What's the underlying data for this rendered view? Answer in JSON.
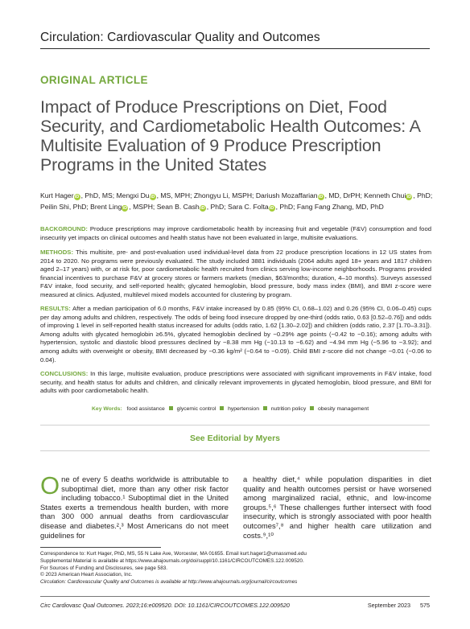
{
  "journal": "Circulation: Cardiovascular Quality and Outcomes",
  "article_type": "ORIGINAL ARTICLE",
  "title": "Impact of Produce Prescriptions on Diet, Food Security, and Cardiometabolic Health Outcomes: A Multisite Evaluation of 9 Produce Prescription Programs in the United States",
  "authors": [
    {
      "name": "Kurt Hager",
      "degrees": ", PhD, MS;",
      "orcid": true
    },
    {
      "name": "Mengxi Du",
      "degrees": ", MS, MPH;",
      "orcid": true
    },
    {
      "name": "Zhongyu Li",
      "degrees": ", MSPH;",
      "orcid": false
    },
    {
      "name": "Dariush Mozaffarian",
      "degrees": ", MD, DrPH;",
      "orcid": true
    },
    {
      "name": "Kenneth Chui",
      "degrees": ", PhD;",
      "orcid": true
    },
    {
      "name": "Peilin Shi",
      "degrees": ", PhD;",
      "orcid": false
    },
    {
      "name": "Brent Ling",
      "degrees": ", MSPH;",
      "orcid": true
    },
    {
      "name": "Sean B. Cash",
      "degrees": ", PhD;",
      "orcid": true
    },
    {
      "name": "Sara C. Folta",
      "degrees": ", PhD;",
      "orcid": true
    },
    {
      "name": "Fang Fang Zhang",
      "degrees": ", MD, PhD",
      "orcid": false
    }
  ],
  "abstract": {
    "background_label": "BACKGROUND:",
    "background": "Produce prescriptions may improve cardiometabolic health by increasing fruit and vegetable (F&V) consumption and food insecurity yet impacts on clinical outcomes and health status have not been evaluated in large, multisite evaluations.",
    "methods_label": "METHODS:",
    "methods": "This multisite, pre- and post-evaluation used individual-level data from 22 produce prescription locations in 12 US states from 2014 to 2020. No programs were previously evaluated. The study included 3881 individuals (2064 adults aged 18+ years and 1817 children aged 2–17 years) with, or at risk for, poor cardiometabolic health recruited from clinics serving low-income neighborhoods. Programs provided financial incentives to purchase F&V at grocery stores or farmers markets (median, $63/months; duration, 4–10 months). Surveys assessed F&V intake, food security, and self-reported health; glycated hemoglobin, blood pressure, body mass index (BMI), and BMI z-score were measured at clinics. Adjusted, multilevel mixed models accounted for clustering by program.",
    "results_label": "RESULTS:",
    "results": "After a median participation of 6.0 months, F&V intake increased by 0.85 (95% CI, 0.68–1.02) and 0.26 (95% CI, 0.06–0.45) cups per day among adults and children, respectively. The odds of being food insecure dropped by one-third (odds ratio, 0.63 [0.52–0.76]) and odds of improving 1 level in self-reported health status increased for adults (odds ratio, 1.62 [1.30–2.02]) and children (odds ratio, 2.37 [1.70–3.31]). Among adults with glycated hemoglobin ≥6.5%, glycated hemoglobin declined by −0.29% age points (−0.42 to −0.16); among adults with hypertension, systolic and diastolic blood pressures declined by −8.38 mm Hg (−10.13 to −6.62) and −4.94 mm Hg (−5.96 to −3.92); and among adults with overweight or obesity, BMI decreased by −0.36 kg/m² (−0.64 to −0.09). Child BMI z-score did not change −0.01 (−0.06 to 0.04).",
    "conclusions_label": "CONCLUSIONS:",
    "conclusions": "In this large, multisite evaluation, produce prescriptions were associated with significant improvements in F&V intake, food security, and health status for adults and children, and clinically relevant improvements in glycated hemoglobin, blood pressure, and BMI for adults with poor cardiometabolic health."
  },
  "keywords_label": "Key Words:",
  "keywords": [
    "food assistance",
    "glycemic control",
    "hypertension",
    "nutrition policy",
    "obesity management"
  ],
  "editorial": "See Editorial by Myers",
  "body": {
    "left_dropcap": "O",
    "left": "ne of every 5 deaths worldwide is attributable to suboptimal diet, more than any other risk factor including tobacco.¹ Suboptimal diet in the United States exerts a tremendous health burden, with more than 300 000 annual deaths from cardiovascular disease and diabetes.²,³ Most Americans do not meet guidelines for",
    "right": "a healthy diet,⁴ while population disparities in diet quality and health outcomes persist or have worsened among marginalized racial, ethnic, and low-income groups.⁵,⁶ These challenges further intersect with food insecurity, which is strongly associated with poor health outcomes⁷,⁸ and higher health care utilization and costs.⁹,¹⁰"
  },
  "footnotes": [
    "Correspondence to: Kurt Hager, PhD, MS, 55 N Lake Ave, Worcester, MA 01655. Email kurt.hager1@umassmed.edu",
    "Supplemental Material is available at https://www.ahajournals.org/doi/suppl/10.1161/CIRCOUTCOMES.122.009520.",
    "For Sources of Funding and Disclosures, see page 583.",
    "© 2023 American Heart Association, Inc.",
    "Circulation: Cardiovascular Quality and Outcomes is available at http://www.ahajournals.org/journal/circoutcomes"
  ],
  "footer": {
    "citation": "Circ Cardiovasc Qual Outcomes. 2023;16:e009520. DOI: 10.1161/CIRCOUTCOMES.122.009520",
    "date": "September 2023",
    "page": "575"
  },
  "colors": {
    "accent_green": "#74a83d",
    "title_gray": "#505050",
    "orcid_green": "#a6ce39"
  }
}
